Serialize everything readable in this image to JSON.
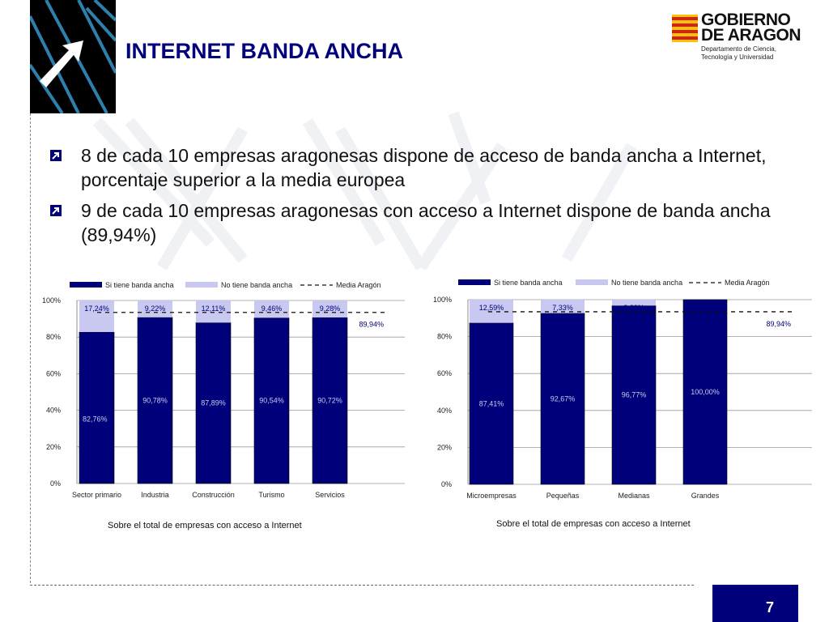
{
  "slide": {
    "title": "INTERNET BANDA ANCHA",
    "page_number": "7"
  },
  "logo": {
    "line1": "GOBIERNO",
    "line2": "DE ARAGON",
    "subtitle": "Departamento de Ciencia, Tecnología y Universidad"
  },
  "bullets": [
    "8 de cada 10 empresas aragonesas dispone de acceso de banda ancha a Internet, porcentaje superior a la media europea",
    "9 de cada 10 empresas aragonesas con acceso a Internet dispone de banda ancha (89,94%)"
  ],
  "colors": {
    "dark": "#00007a",
    "light": "#c8c8f0",
    "title": "#00007a"
  },
  "chart_data": [
    {
      "type": "bar",
      "stacked": true,
      "categories": [
        "Sector primario",
        "Industria",
        "Construcción",
        "Turismo",
        "Servicios"
      ],
      "series": [
        {
          "name": "Si tiene banda ancha",
          "values": [
            82.76,
            90.78,
            87.89,
            90.54,
            90.72
          ],
          "labels": [
            "82,76%",
            "90,78%",
            "87,89%",
            "90,54%",
            "90,72%"
          ]
        },
        {
          "name": "No tiene banda ancha",
          "values": [
            17.24,
            9.22,
            12.11,
            9.46,
            9.28
          ],
          "labels": [
            "17,24%",
            "9,22%",
            "12,11%",
            "9,46%",
            "9,28%"
          ]
        }
      ],
      "reference_line": {
        "name": "Media Aragón",
        "value": 89.94,
        "label": "89,94%"
      },
      "yticks": [
        "0%",
        "20%",
        "40%",
        "60%",
        "80%",
        "100%"
      ],
      "ylim": [
        0,
        100
      ],
      "grid": true,
      "legend": "top",
      "footnote": "Sobre el total de empresas con acceso a Internet"
    },
    {
      "type": "bar",
      "stacked": true,
      "categories": [
        "Microempresas",
        "Pequeñas",
        "Medianas",
        "Grandes"
      ],
      "series": [
        {
          "name": "Si tiene banda ancha",
          "values": [
            87.41,
            92.67,
            96.77,
            100.0
          ],
          "labels": [
            "87,41%",
            "92,67%",
            "96,77%",
            "100,00%"
          ]
        },
        {
          "name": "No tiene banda ancha",
          "values": [
            12.59,
            7.33,
            3.23,
            0
          ],
          "labels": [
            "12,59%",
            "7,33%",
            "3,23%",
            ""
          ]
        }
      ],
      "reference_line": {
        "name": "Media Aragón",
        "value": 89.94,
        "label": "89,94%"
      },
      "yticks": [
        "0%",
        "20%",
        "40%",
        "60%",
        "80%",
        "100%"
      ],
      "ylim": [
        0,
        100
      ],
      "grid": true,
      "legend": "top",
      "footnote": "Sobre el total de empresas con acceso a Internet"
    }
  ]
}
